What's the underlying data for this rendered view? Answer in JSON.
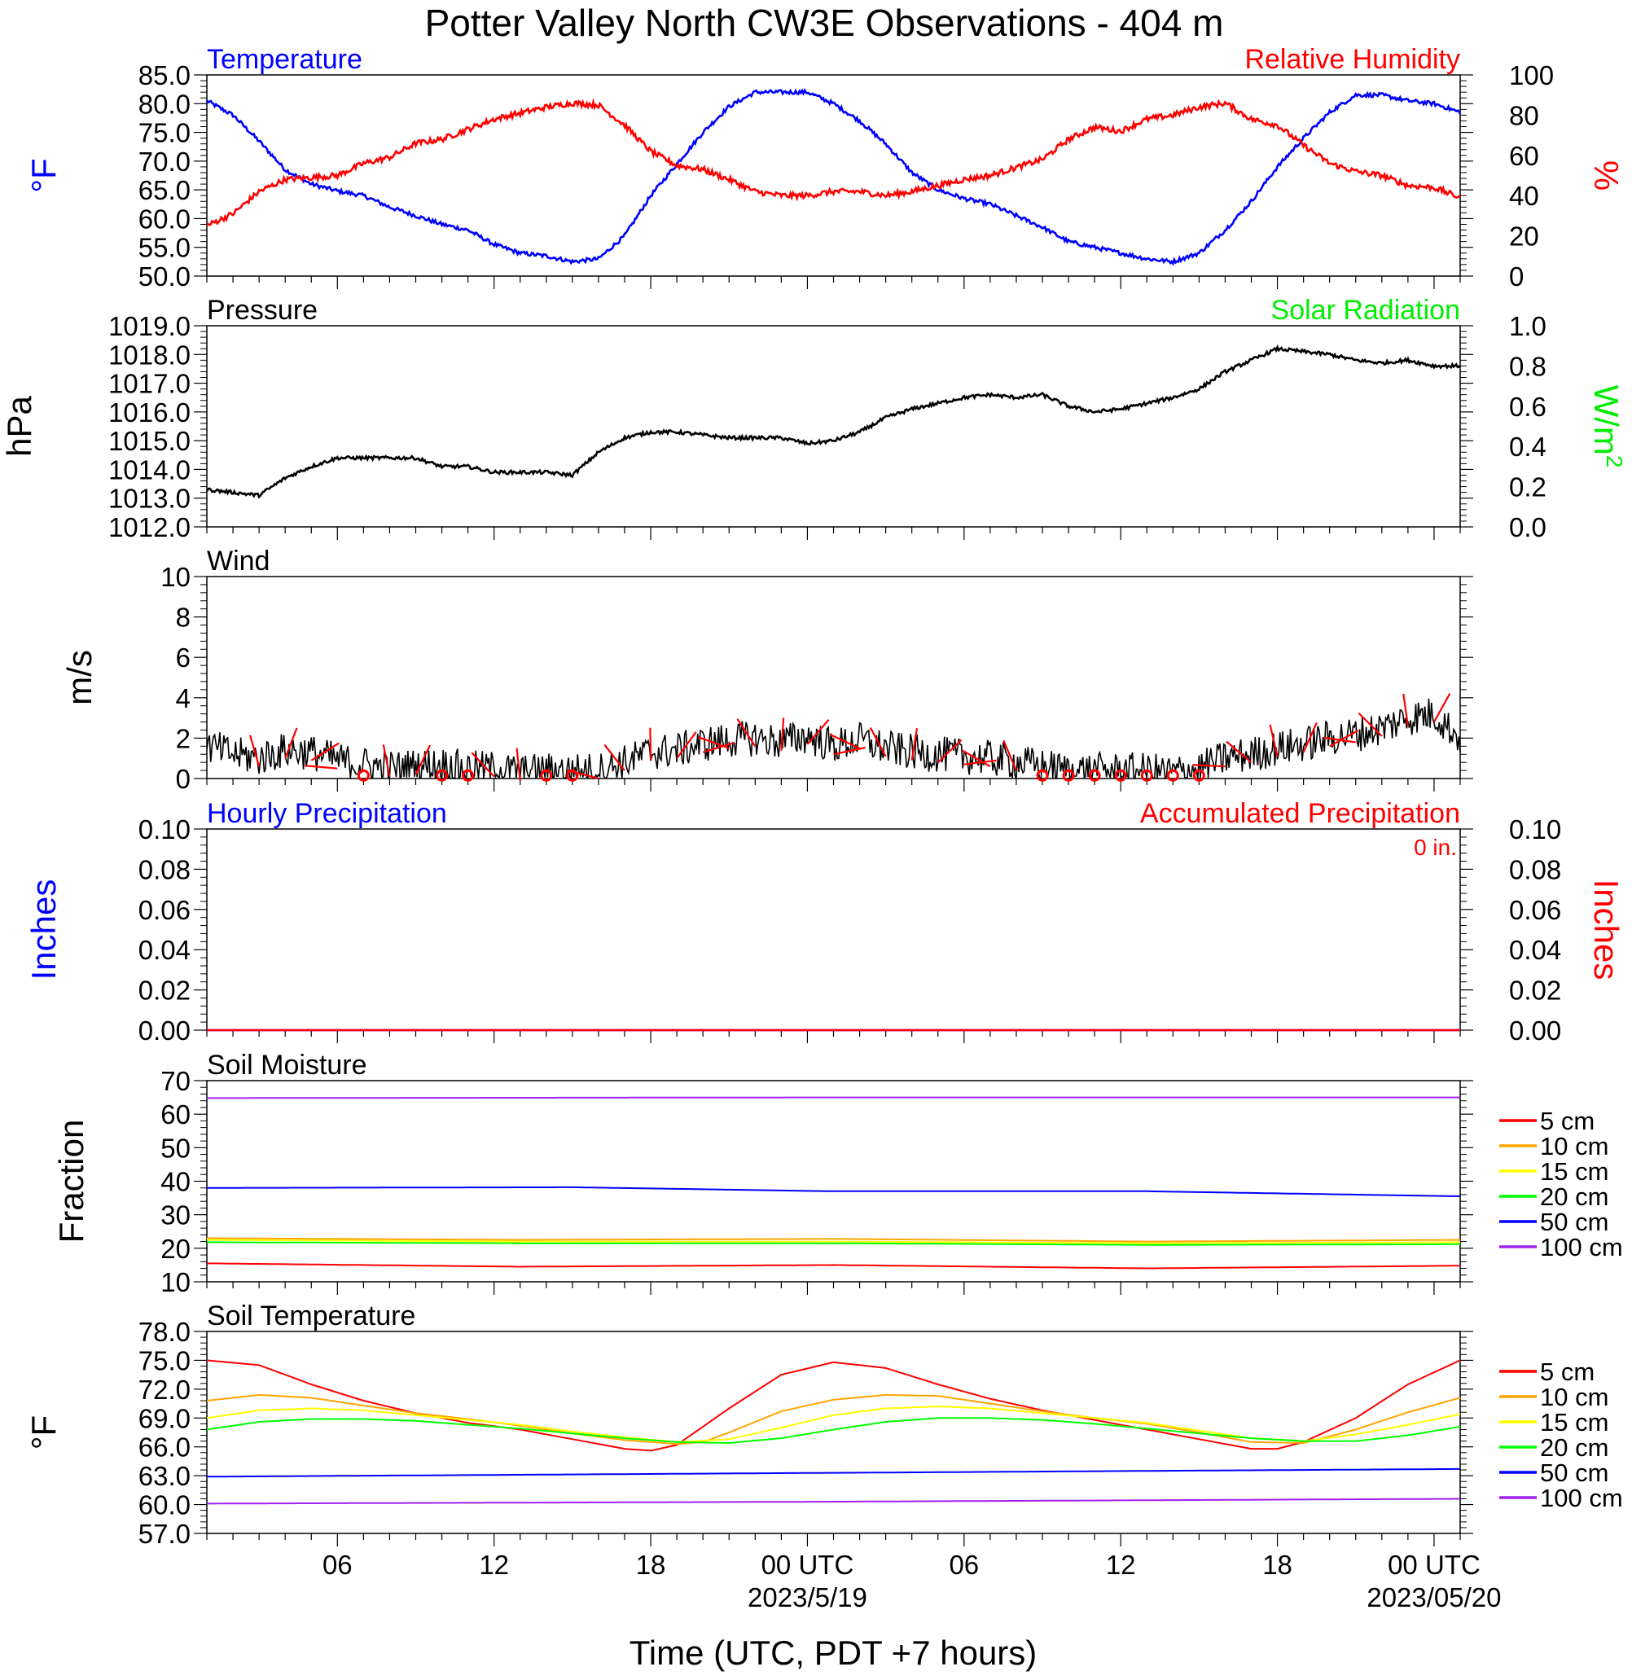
{
  "page": {
    "title": "Potter Valley North CW3E Observations - 404 m",
    "xlabel": "Time (UTC, PDT +7 hours)",
    "colors": {
      "blue": "#0000ff",
      "red": "#ff0000",
      "green": "#00ee00",
      "black": "#000000"
    }
  },
  "chart_data": [
    {
      "id": "temp_rh",
      "type": "line",
      "title_left": "Temperature",
      "title_right": "Relative Humidity",
      "ylabel_left": "°F",
      "ylabel_right": "%",
      "ylim_left": [
        50,
        85
      ],
      "yticks_left": [
        "85.0",
        "80.0",
        "75.0",
        "70.0",
        "65.0",
        "60.0",
        "55.0",
        "50.0"
      ],
      "ylim_right": [
        0,
        100
      ],
      "yticks_right": [
        "100",
        "80",
        "60",
        "40",
        "20",
        "0"
      ],
      "xlim_hours_from_start": [
        0,
        48
      ],
      "series": [
        {
          "name": "Temperature",
          "axis": "left",
          "color": "#0000ff",
          "x": [
            0,
            1,
            2,
            3,
            4,
            5,
            6,
            7,
            8,
            9,
            10,
            11,
            12,
            13,
            14,
            15,
            16,
            17,
            18,
            19,
            20,
            21,
            22,
            23,
            24,
            25,
            26,
            27,
            28,
            29,
            30,
            31,
            32,
            33,
            34,
            35,
            36,
            37,
            38,
            39,
            40,
            41,
            42,
            43,
            44,
            45,
            46,
            47,
            48
          ],
          "y": [
            80.5,
            78,
            73.5,
            68.5,
            66,
            64.8,
            64,
            62,
            60.5,
            59,
            58,
            55.5,
            54,
            53.5,
            52.5,
            53,
            57,
            64,
            69.5,
            75,
            79.5,
            82,
            82,
            82,
            80,
            77,
            73,
            68,
            65,
            63.5,
            62.5,
            60.5,
            58.5,
            56,
            55,
            54,
            53,
            52.5,
            54,
            58,
            63,
            69,
            74,
            78.5,
            81.5,
            81.5,
            80.5,
            80,
            78.5
          ]
        },
        {
          "name": "Relative Humidity",
          "axis": "right",
          "color": "#ff0000",
          "x": [
            0,
            1,
            2,
            3,
            4,
            5,
            6,
            7,
            8,
            9,
            10,
            11,
            12,
            13,
            14,
            15,
            16,
            17,
            18,
            19,
            20,
            21,
            22,
            23,
            24,
            25,
            26,
            27,
            28,
            29,
            30,
            31,
            32,
            33,
            34,
            35,
            36,
            37,
            38,
            39,
            40,
            41,
            42,
            43,
            44,
            45,
            46,
            47,
            48
          ],
          "y": [
            25,
            31,
            42,
            48,
            49,
            50,
            56,
            59,
            66,
            68,
            73,
            78,
            81,
            84,
            86,
            85,
            75,
            62,
            55,
            53,
            48,
            42,
            40,
            40,
            42,
            42,
            40,
            42,
            45,
            48,
            50,
            54,
            58,
            68,
            74,
            72,
            78,
            80,
            84,
            86,
            78,
            75,
            65,
            56,
            52,
            50,
            45,
            44,
            39
          ]
        }
      ]
    },
    {
      "id": "pressure",
      "type": "line",
      "title_left": "Pressure",
      "title_right": "Solar Radiation",
      "ylabel_left": "hPa",
      "ylabel_right": "W/m2",
      "ylim_left": [
        1012,
        1019
      ],
      "yticks_left": [
        "1019.0",
        "1018.0",
        "1017.0",
        "1016.0",
        "1015.0",
        "1014.0",
        "1013.0",
        "1012.0"
      ],
      "ylim_right": [
        0,
        1
      ],
      "yticks_right": [
        "1.0",
        "0.8",
        "0.6",
        "0.4",
        "0.2",
        "0.0"
      ],
      "series": [
        {
          "name": "Pressure",
          "axis": "left",
          "color": "#000000",
          "x": [
            0,
            1,
            2,
            3,
            4,
            5,
            6,
            7,
            8,
            9,
            10,
            11,
            12,
            13,
            14,
            15,
            16,
            17,
            18,
            19,
            20,
            21,
            22,
            23,
            24,
            25,
            26,
            27,
            28,
            29,
            30,
            31,
            32,
            33,
            34,
            35,
            36,
            37,
            38,
            39,
            40,
            41,
            42,
            43,
            44,
            45,
            46,
            47,
            48
          ],
          "y": [
            1013.3,
            1013.2,
            1013.1,
            1013.7,
            1014.1,
            1014.4,
            1014.4,
            1014.4,
            1014.4,
            1014.1,
            1014.1,
            1013.9,
            1013.9,
            1013.9,
            1013.8,
            1014.6,
            1015.1,
            1015.3,
            1015.3,
            1015.2,
            1015.1,
            1015.1,
            1015.1,
            1014.9,
            1015.0,
            1015.3,
            1015.8,
            1016.1,
            1016.3,
            1016.5,
            1016.6,
            1016.5,
            1016.6,
            1016.2,
            1016.0,
            1016.1,
            1016.3,
            1016.5,
            1016.8,
            1017.4,
            1017.8,
            1018.2,
            1018.1,
            1018.0,
            1017.8,
            1017.7,
            1017.8,
            1017.6,
            1017.6
          ]
        }
      ]
    },
    {
      "id": "wind",
      "type": "line",
      "title_left": "Wind",
      "ylabel_left": "m/s",
      "ylim_left": [
        0,
        10
      ],
      "yticks_left": [
        "10",
        "8",
        "6",
        "4",
        "2",
        "0"
      ],
      "series": [
        {
          "name": "Wind",
          "axis": "left",
          "color": "#000000",
          "x": [
            0,
            1,
            2,
            3,
            4,
            5,
            6,
            7,
            8,
            9,
            10,
            11,
            12,
            13,
            14,
            15,
            16,
            17,
            18,
            19,
            20,
            21,
            22,
            23,
            24,
            25,
            26,
            27,
            28,
            29,
            30,
            31,
            32,
            33,
            34,
            35,
            36,
            37,
            38,
            39,
            40,
            41,
            42,
            43,
            44,
            45,
            46,
            47,
            48
          ],
          "y": [
            1.6,
            1.2,
            1.0,
            1.4,
            1.3,
            0.9,
            0.7,
            0.5,
            0.6,
            0.7,
            0.5,
            0.5,
            0.3,
            0.4,
            0.4,
            0.4,
            0.8,
            1.3,
            1.4,
            1.7,
            1.9,
            2.0,
            1.8,
            2.1,
            1.6,
            1.9,
            1.5,
            1.3,
            1.2,
            1.1,
            1.0,
            0.8,
            0.6,
            0.4,
            0.4,
            0.4,
            0.4,
            0.3,
            0.5,
            1.0,
            1.2,
            1.5,
            1.7,
            2.0,
            2.2,
            2.5,
            3.0,
            3.2,
            2.0
          ]
        }
      ],
      "calm_hours": [
        6,
        9,
        10,
        13,
        14,
        32,
        33,
        34,
        35,
        36,
        37,
        38
      ]
    },
    {
      "id": "precip",
      "type": "line",
      "title_left": "Hourly Precipitation",
      "title_right": "Accumulated Precipitation",
      "annotation": "0 in.",
      "ylabel_left": "Inches",
      "ylabel_right": "Inches",
      "ylim_left": [
        0,
        0.1
      ],
      "yticks_left": [
        "0.10",
        "0.08",
        "0.06",
        "0.04",
        "0.02",
        "0.00"
      ],
      "ylim_right": [
        0,
        0.1
      ],
      "yticks_right": [
        "0.10",
        "0.08",
        "0.06",
        "0.04",
        "0.02",
        "0.00"
      ],
      "series": [
        {
          "name": "Hourly Precipitation",
          "color": "#0000ff",
          "x": [
            0,
            48
          ],
          "y": [
            0,
            0
          ]
        },
        {
          "name": "Accumulated Precipitation",
          "color": "#ff0000",
          "x": [
            0,
            48
          ],
          "y": [
            0,
            0
          ]
        }
      ]
    },
    {
      "id": "soil_moisture",
      "type": "line",
      "title_left": "Soil Moisture",
      "ylabel_left": "Fraction",
      "ylim_left": [
        10,
        70
      ],
      "yticks_left": [
        "70",
        "60",
        "50",
        "40",
        "30",
        "20",
        "10"
      ],
      "series": [
        {
          "name": "5 cm",
          "color": "#ff0000",
          "x": [
            0,
            12,
            24,
            36,
            48
          ],
          "y": [
            15.5,
            14.5,
            15,
            14,
            14.8
          ]
        },
        {
          "name": "10 cm",
          "color": "#ffa500",
          "x": [
            0,
            12,
            24,
            36,
            48
          ],
          "y": [
            23,
            22.5,
            22.8,
            22,
            22.5
          ]
        },
        {
          "name": "15 cm",
          "color": "#ffff00",
          "x": [
            0,
            12,
            24,
            36,
            48
          ],
          "y": [
            22.5,
            22,
            22,
            21.5,
            21.8
          ]
        },
        {
          "name": "20 cm",
          "color": "#00ff00",
          "x": [
            0,
            12,
            24,
            36,
            48
          ],
          "y": [
            21.8,
            21.5,
            21.5,
            21,
            21.2
          ]
        },
        {
          "name": "50 cm",
          "color": "#0000ff",
          "x": [
            0,
            14,
            24,
            36,
            48
          ],
          "y": [
            38,
            38.2,
            37,
            37,
            35.5
          ]
        },
        {
          "name": "100 cm",
          "color": "#a020f0",
          "x": [
            0,
            24,
            48
          ],
          "y": [
            64.8,
            65,
            65
          ]
        }
      ]
    },
    {
      "id": "soil_temp",
      "type": "line",
      "title_left": "Soil Temperature",
      "ylabel_left": "°F",
      "ylim_left": [
        57,
        78
      ],
      "yticks_left": [
        "78.0",
        "75.0",
        "72.0",
        "69.0",
        "66.0",
        "63.0",
        "60.0",
        "57.0"
      ],
      "series": [
        {
          "name": "5 cm",
          "color": "#ff0000",
          "x": [
            0,
            2,
            4,
            6,
            8,
            10,
            12,
            14,
            16,
            17,
            18,
            20,
            22,
            24,
            26,
            28,
            30,
            32,
            34,
            36,
            38,
            40,
            41,
            42,
            44,
            46,
            48
          ],
          "y": [
            75,
            74.5,
            72.5,
            70.8,
            69.5,
            68.5,
            67.8,
            66.8,
            65.8,
            65.6,
            66.2,
            70,
            73.5,
            74.8,
            74.2,
            72.5,
            71,
            69.8,
            68.8,
            67.8,
            66.8,
            65.8,
            65.8,
            66.5,
            69,
            72.5,
            75
          ]
        },
        {
          "name": "10 cm",
          "color": "#ffa500",
          "x": [
            0,
            2,
            4,
            6,
            8,
            10,
            12,
            14,
            16,
            18,
            19,
            20,
            22,
            24,
            26,
            28,
            30,
            32,
            34,
            36,
            38,
            40,
            42,
            44,
            46,
            48
          ],
          "y": [
            70.8,
            71.4,
            71.1,
            70.3,
            69.5,
            68.9,
            68.2,
            67.4,
            66.7,
            66.3,
            66.5,
            67.5,
            69.7,
            70.9,
            71.4,
            71.3,
            70.5,
            69.7,
            69,
            68.4,
            67.5,
            66.5,
            66.4,
            67.8,
            69.6,
            71.1
          ]
        },
        {
          "name": "15 cm",
          "color": "#ffff00",
          "x": [
            0,
            2,
            4,
            6,
            8,
            10,
            12,
            14,
            16,
            18,
            20,
            22,
            24,
            26,
            28,
            30,
            32,
            34,
            36,
            38,
            40,
            42,
            44,
            46,
            48
          ],
          "y": [
            69,
            69.8,
            70,
            69.8,
            69.3,
            68.8,
            68.3,
            67.6,
            67,
            66.5,
            66.8,
            68,
            69.3,
            70,
            70.2,
            70,
            69.5,
            69,
            68.5,
            67.7,
            66.9,
            66.6,
            67.3,
            68.3,
            69.4
          ]
        },
        {
          "name": "20 cm",
          "color": "#00ff00",
          "x": [
            0,
            2,
            4,
            6,
            8,
            10,
            12,
            14,
            16,
            18,
            20,
            22,
            24,
            26,
            28,
            30,
            32,
            34,
            36,
            38,
            40,
            42,
            44,
            46,
            48
          ],
          "y": [
            67.8,
            68.6,
            68.9,
            68.9,
            68.7,
            68.3,
            67.9,
            67.4,
            66.9,
            66.5,
            66.4,
            66.9,
            67.8,
            68.6,
            69,
            69,
            68.8,
            68.4,
            67.9,
            67.4,
            66.9,
            66.6,
            66.6,
            67.2,
            68.1
          ]
        },
        {
          "name": "50 cm",
          "color": "#0000ff",
          "x": [
            0,
            24,
            48
          ],
          "y": [
            62.9,
            63.3,
            63.7
          ]
        },
        {
          "name": "100 cm",
          "color": "#a020f0",
          "x": [
            0,
            24,
            48
          ],
          "y": [
            60.1,
            60.3,
            60.6
          ]
        }
      ]
    }
  ],
  "xaxis": {
    "ticks": [
      {
        "hour": 5,
        "label": "06"
      },
      {
        "hour": 11,
        "label": "12"
      },
      {
        "hour": 17,
        "label": "18"
      },
      {
        "hour": 23,
        "label": "00 UTC"
      },
      {
        "hour": 29,
        "label": "06"
      },
      {
        "hour": 35,
        "label": "12"
      },
      {
        "hour": 41,
        "label": "18"
      },
      {
        "hour": 47,
        "label": "00 UTC"
      }
    ],
    "date_labels": [
      {
        "hour": 23,
        "label": "2023/5/19"
      },
      {
        "hour": 47,
        "label": "2023/05/20"
      }
    ]
  },
  "legend": {
    "items": [
      {
        "label": "5 cm",
        "color": "#ff0000"
      },
      {
        "label": "10 cm",
        "color": "#ffa500"
      },
      {
        "label": "15 cm",
        "color": "#ffff00"
      },
      {
        "label": "20 cm",
        "color": "#00ff00"
      },
      {
        "label": "50 cm",
        "color": "#0000ff"
      },
      {
        "label": "100 cm",
        "color": "#a020f0"
      }
    ]
  }
}
